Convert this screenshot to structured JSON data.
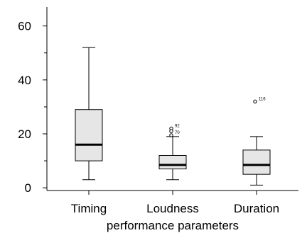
{
  "chart_data": {
    "type": "boxplot",
    "title": "",
    "xlabel": "performance parameters",
    "ylabel": "",
    "ylim": [
      -1,
      67
    ],
    "yticks": [
      0,
      20,
      40,
      60
    ],
    "grid": false,
    "categories": [
      "Timing",
      "Loudness",
      "Duration"
    ],
    "boxes": [
      {
        "category": "Timing",
        "whisker_low": 3,
        "q1": 10,
        "median": 16,
        "q3": 29,
        "whisker_high": 52,
        "outliers": []
      },
      {
        "category": "Loudness",
        "whisker_low": 3,
        "q1": 7,
        "median": 8.5,
        "q3": 12,
        "whisker_high": 19,
        "outliers": [
          {
            "value": 22,
            "label": "92"
          },
          {
            "value": 21,
            "label": ""
          },
          {
            "value": 19.5,
            "label": "70"
          }
        ]
      },
      {
        "category": "Duration",
        "whisker_low": 1,
        "q1": 5,
        "median": 8.5,
        "q3": 14,
        "whisker_high": 19,
        "outliers": [
          {
            "value": 32,
            "label": "116"
          }
        ]
      }
    ],
    "colors": {
      "box_fill": "#e6e6e6",
      "stroke": "#000000",
      "median": "#000000"
    }
  }
}
